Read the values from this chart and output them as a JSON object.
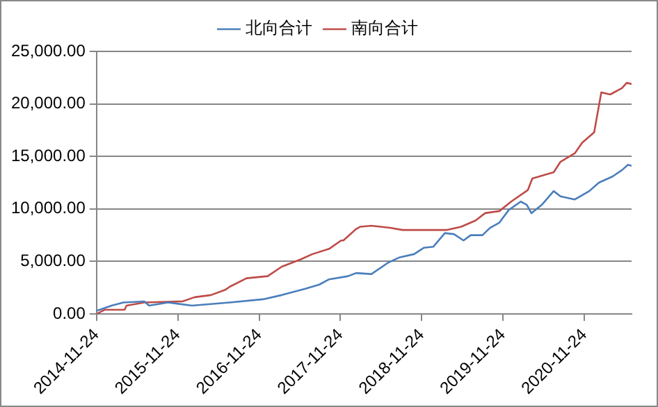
{
  "chart_data": {
    "type": "line",
    "xlim": [
      "2014-11-24",
      "2021-06-24"
    ],
    "xticks": [
      "2014-11-24",
      "2015-11-24",
      "2016-11-24",
      "2017-11-24",
      "2018-11-24",
      "2019-11-24",
      "2020-11-24"
    ],
    "ylim": [
      0,
      25000
    ],
    "yticks": [
      {
        "value": 0,
        "label": "0.00"
      },
      {
        "value": 5000,
        "label": "5,000.00"
      },
      {
        "value": 10000,
        "label": "10,000.00"
      },
      {
        "value": 15000,
        "label": "15,000.00"
      },
      {
        "value": 20000,
        "label": "20,000.00"
      },
      {
        "value": 25000,
        "label": "25,000.00"
      }
    ],
    "grid": "y",
    "legend": "top",
    "marker": "none",
    "line_style": "solid",
    "series": [
      {
        "name": "北向合计",
        "color": "#4a7ebb",
        "x": [
          "2014-11-24",
          "2015-01-31",
          "2015-03-25",
          "2015-06-27",
          "2015-07-18",
          "2015-10-12",
          "2016-01-27",
          "2016-07-15",
          "2016-12-11",
          "2017-03-05",
          "2017-06-19",
          "2017-08-21",
          "2017-10-04",
          "2017-12-28",
          "2018-02-03",
          "2018-04-12",
          "2018-06-27",
          "2018-08-18",
          "2018-10-21",
          "2018-12-03",
          "2019-01-15",
          "2019-03-08",
          "2019-04-18",
          "2019-05-31",
          "2019-07-02",
          "2019-08-24",
          "2019-09-27",
          "2019-11-08",
          "2019-12-20",
          "2020-02-12",
          "2020-03-10",
          "2020-03-31",
          "2020-05-17",
          "2020-07-09",
          "2020-08-09",
          "2020-10-12",
          "2020-12-16",
          "2021-01-28",
          "2021-03-31",
          "2021-05-12",
          "2021-06-08",
          "2021-06-24"
        ],
        "values": [
          300,
          800,
          1100,
          1200,
          800,
          1100,
          800,
          1100,
          1400,
          1800,
          2400,
          2800,
          3300,
          3600,
          3900,
          3800,
          4900,
          5400,
          5700,
          6300,
          6400,
          7700,
          7600,
          7000,
          7500,
          7500,
          8200,
          8700,
          9900,
          10700,
          10400,
          9600,
          10400,
          11700,
          11200,
          10900,
          11700,
          12500,
          13100,
          13700,
          14200,
          14100
        ]
      },
      {
        "name": "南向合计",
        "color": "#be4b48",
        "x": [
          "2014-11-24",
          "2014-12-30",
          "2015-03-30",
          "2015-04-08",
          "2015-06-27",
          "2015-12-15",
          "2016-02-08",
          "2016-04-21",
          "2016-06-24",
          "2016-07-15",
          "2016-09-28",
          "2017-01-01",
          "2017-03-05",
          "2017-05-29",
          "2017-07-21",
          "2017-10-04",
          "2017-11-27",
          "2017-12-07",
          "2018-02-03",
          "2018-02-20",
          "2018-04-12",
          "2018-07-05",
          "2018-08-30",
          "2019-03-18",
          "2019-05-20",
          "2019-07-24",
          "2019-09-05",
          "2019-11-08",
          "2019-12-31",
          "2020-03-15",
          "2020-04-04",
          "2020-07-09",
          "2020-08-09",
          "2020-10-12",
          "2020-11-14",
          "2021-01-07",
          "2021-02-08",
          "2021-03-20",
          "2021-05-12",
          "2021-06-02",
          "2021-06-24"
        ],
        "values": [
          0,
          400,
          400,
          800,
          1100,
          1200,
          1600,
          1800,
          2300,
          2600,
          3400,
          3600,
          4500,
          5200,
          5700,
          6200,
          7000,
          7000,
          8100,
          8300,
          8400,
          8200,
          8000,
          8000,
          8300,
          8900,
          9600,
          9800,
          10700,
          11800,
          12900,
          13500,
          14500,
          15300,
          16300,
          17300,
          21100,
          20900,
          21500,
          22000,
          21900
        ]
      }
    ]
  }
}
